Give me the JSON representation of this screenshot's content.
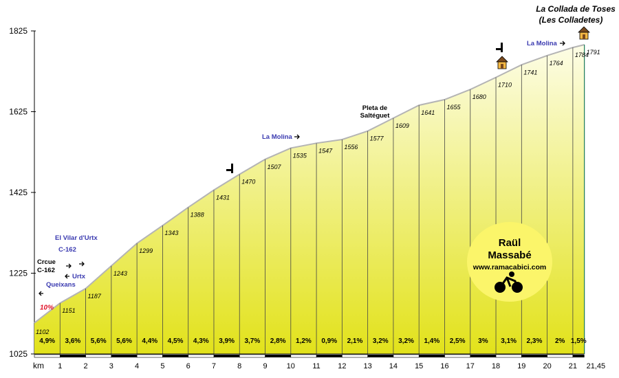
{
  "chart_data": {
    "type": "area",
    "title": "La Collada de Toses",
    "subtitle": "(Les Colladetes)",
    "xlabel": "km",
    "ylim": [
      1025,
      1825
    ],
    "xlim": [
      0,
      21.45
    ],
    "y_ticks": [
      1025,
      1225,
      1425,
      1625,
      1825
    ],
    "x_ticks": [
      {
        "v": 1,
        "label": "1"
      },
      {
        "v": 2,
        "label": "2"
      },
      {
        "v": 3,
        "label": "3"
      },
      {
        "v": 4,
        "label": "4"
      },
      {
        "v": 5,
        "label": "5"
      },
      {
        "v": 6,
        "label": "6"
      },
      {
        "v": 7,
        "label": "7"
      },
      {
        "v": 8,
        "label": "8"
      },
      {
        "v": 9,
        "label": "9"
      },
      {
        "v": 10,
        "label": "10"
      },
      {
        "v": 11,
        "label": "11"
      },
      {
        "v": 12,
        "label": "12"
      },
      {
        "v": 13,
        "label": "13"
      },
      {
        "v": 14,
        "label": "14"
      },
      {
        "v": 15,
        "label": "15"
      },
      {
        "v": 16,
        "label": "16"
      },
      {
        "v": 17,
        "label": "17"
      },
      {
        "v": 18,
        "label": "18"
      },
      {
        "v": 19,
        "label": "19"
      },
      {
        "v": 20,
        "label": "20"
      },
      {
        "v": 21,
        "label": "21"
      },
      {
        "v": 21.45,
        "label": "21,45"
      }
    ],
    "x": [
      0,
      1,
      2,
      3,
      4,
      5,
      6,
      7,
      8,
      9,
      10,
      11,
      12,
      13,
      14,
      15,
      16,
      17,
      18,
      19,
      20,
      21,
      21.45
    ],
    "altitudes": [
      1102,
      1151,
      1187,
      1243,
      1299,
      1343,
      1388,
      1431,
      1470,
      1507,
      1535,
      1547,
      1556,
      1577,
      1609,
      1641,
      1655,
      1680,
      1710,
      1741,
      1764,
      1784,
      1791
    ],
    "altitude_labels": [
      "1102",
      "1151",
      "1187",
      "1243",
      "1299",
      "1343",
      "1388",
      "1431",
      "1470",
      "1507",
      "1535",
      "1547",
      "1556",
      "1577",
      "1609",
      "1641",
      "1655",
      "1680",
      "1710",
      "1741",
      "1764",
      "1784",
      "1791"
    ],
    "gradients": [
      "4,9%",
      "3,6%",
      "5,6%",
      "5,6%",
      "4,4%",
      "4,5%",
      "4,3%",
      "3,9%",
      "3,7%",
      "2,8%",
      "1,2%",
      "0,9%",
      "2,1%",
      "3,2%",
      "3,2%",
      "1,4%",
      "2,5%",
      "3%",
      "3,1%",
      "2,3%",
      "2%",
      "1,5%"
    ],
    "steep_label": "10%",
    "annotations": [
      {
        "km": 0.2,
        "alt": 1172,
        "text": "Crcue",
        "dir": "left"
      },
      {
        "km": 0.2,
        "alt": 1172,
        "text": "C-162",
        "dir": "none"
      },
      {
        "km": 1.0,
        "alt": 1235,
        "text": "C-162",
        "dir": "right"
      },
      {
        "km": 1.0,
        "alt": 1235,
        "text": "Urtx",
        "dir": "left"
      },
      {
        "km": 1.0,
        "alt": 1235,
        "text": "Queixans",
        "dir": "none"
      },
      {
        "km": 1.0,
        "alt": 1300,
        "text": "El Vilar d'Urtx",
        "dir": "right"
      },
      {
        "km": 10.0,
        "alt": 1570,
        "text": "La Molina",
        "dir": "right"
      },
      {
        "km": 13.0,
        "alt": 1640,
        "text": "Pleta de",
        "dir": "none"
      },
      {
        "km": 13.0,
        "alt": 1640,
        "text": "Saltéguet",
        "dir": "none"
      },
      {
        "km": 20.0,
        "alt": 1800,
        "text": "La Molina",
        "dir": "right"
      }
    ],
    "grid": true,
    "colors": {
      "fill_top": "#fdfde6",
      "fill_bottom": "#e2e21a",
      "profile": "#b4b4b4",
      "link": "#3a3ab0",
      "steep": "#e0142a",
      "axis": "#000000"
    }
  },
  "credit": {
    "line1": "Raül",
    "line2": "Massabé",
    "url": "www.ramacabici.com",
    "bg_color": "#fbf56a"
  }
}
